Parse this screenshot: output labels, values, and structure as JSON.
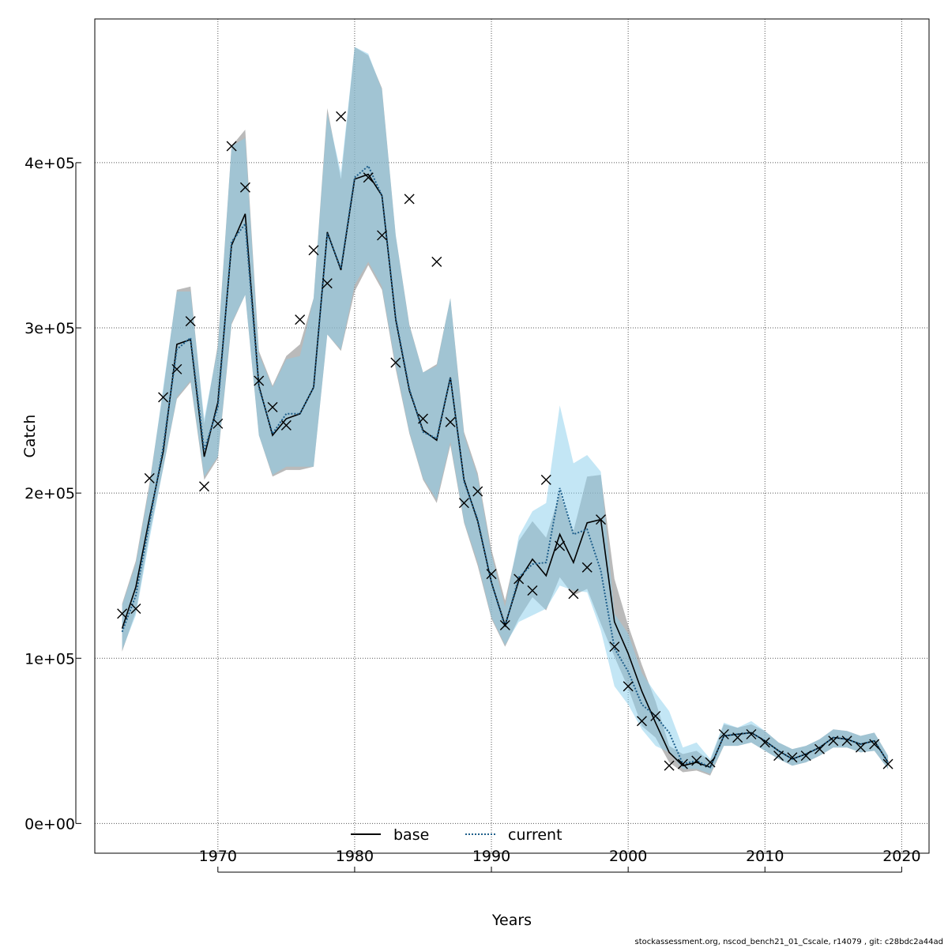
{
  "chart_data": {
    "type": "line",
    "xlabel": "Years",
    "ylabel": "Catch",
    "xlim": [
      1961,
      2022
    ],
    "ylim": [
      -18000,
      487000
    ],
    "x_ticks": [
      1970,
      1980,
      1990,
      2000,
      2010,
      2020
    ],
    "y_ticks": [
      0,
      100000,
      200000,
      300000,
      400000
    ],
    "y_tick_labels": [
      "0e+00",
      "1e+05",
      "2e+05",
      "3e+05",
      "4e+05"
    ],
    "grid": true,
    "legend_position": "bottom-center",
    "colors": {
      "base": "#000000",
      "current": "#1f5f8b",
      "base_band": "#8c8c8c",
      "current_band": "#87ceeb"
    },
    "x": [
      1963,
      1964,
      1965,
      1966,
      1967,
      1968,
      1969,
      1970,
      1971,
      1972,
      1973,
      1974,
      1975,
      1976,
      1977,
      1978,
      1979,
      1980,
      1981,
      1982,
      1983,
      1984,
      1985,
      1986,
      1987,
      1988,
      1989,
      1990,
      1991,
      1992,
      1993,
      1994,
      1995,
      1996,
      1997,
      1998,
      1999,
      2000,
      2001,
      2002,
      2003,
      2004,
      2005,
      2006,
      2007,
      2008,
      2009,
      2010,
      2011,
      2012,
      2013,
      2014,
      2015,
      2016,
      2017,
      2018,
      2019
    ],
    "observed": [
      127000,
      130000,
      209000,
      258000,
      275000,
      304000,
      204000,
      242000,
      410000,
      385000,
      268000,
      252000,
      241000,
      305000,
      347000,
      327000,
      428000,
      null,
      391000,
      356000,
      279000,
      378000,
      245000,
      340000,
      243000,
      194000,
      201000,
      151000,
      120000,
      148000,
      141000,
      208000,
      168000,
      139000,
      155000,
      184000,
      107000,
      83000,
      62000,
      65000,
      35000,
      36000,
      38000,
      37000,
      54000,
      52000,
      54000,
      49000,
      41000,
      40000,
      41000,
      45000,
      50000,
      50000,
      46000,
      48000,
      36000
    ],
    "series": [
      {
        "name": "base",
        "values": [
          118000,
          143000,
          185000,
          225000,
          290000,
          293000,
          222000,
          255000,
          350000,
          369000,
          265000,
          235000,
          245000,
          248000,
          264000,
          358000,
          335000,
          390000,
          393000,
          380000,
          305000,
          262000,
          238000,
          232000,
          270000,
          208000,
          183000,
          146000,
          120000,
          147000,
          160000,
          150000,
          175000,
          158000,
          182000,
          184000,
          122000,
          103000,
          80000,
          61000,
          43000,
          35000,
          37000,
          34000,
          53000,
          54000,
          55000,
          50000,
          44000,
          39000,
          42000,
          46000,
          52000,
          51000,
          48000,
          50000,
          37000
        ],
        "lower": [
          104000,
          128000,
          175000,
          215000,
          257000,
          267000,
          208000,
          221000,
          302000,
          320000,
          235000,
          210000,
          214000,
          214000,
          216000,
          296000,
          286000,
          322000,
          338000,
          323000,
          275000,
          236000,
          208000,
          194000,
          229000,
          182000,
          156000,
          124000,
          107000,
          124000,
          137000,
          129000,
          149000,
          138000,
          142000,
          121000,
          101000,
          82000,
          59000,
          52000,
          37000,
          31000,
          32000,
          29000,
          47000,
          47000,
          49000,
          44000,
          39000,
          35000,
          37000,
          41000,
          46000,
          46000,
          43000,
          44000,
          33000
        ],
        "upper": [
          133000,
          159000,
          206000,
          262000,
          323000,
          325000,
          242000,
          290000,
          410000,
          420000,
          286000,
          265000,
          283000,
          290000,
          318000,
          433000,
          390000,
          470000,
          465000,
          445000,
          356000,
          302000,
          273000,
          278000,
          318000,
          237000,
          212000,
          166000,
          135000,
          171000,
          183000,
          173000,
          200000,
          177000,
          210000,
          211000,
          148000,
          120000,
          96000,
          74000,
          47000,
          42000,
          44000,
          38000,
          60000,
          58000,
          60000,
          56000,
          49000,
          45000,
          47000,
          51000,
          57000,
          56000,
          53000,
          55000,
          41000
        ]
      },
      {
        "name": "current",
        "values": [
          116000,
          138000,
          182000,
          228000,
          287000,
          294000,
          226000,
          252000,
          352000,
          363000,
          264000,
          236000,
          248000,
          248000,
          264000,
          357000,
          336000,
          391000,
          398000,
          380000,
          306000,
          263000,
          237000,
          233000,
          270000,
          207000,
          184000,
          146000,
          119000,
          149000,
          157000,
          158000,
          203000,
          175000,
          178000,
          153000,
          106000,
          92000,
          72000,
          65000,
          55000,
          36000,
          38000,
          34000,
          53000,
          54000,
          55000,
          50000,
          44000,
          39000,
          42000,
          46000,
          52000,
          51000,
          48000,
          50000,
          37000
        ],
        "lower": [
          105000,
          126000,
          172000,
          215000,
          258000,
          268000,
          210000,
          222000,
          303000,
          320000,
          235000,
          211000,
          216000,
          216000,
          216000,
          296000,
          287000,
          326000,
          340000,
          325000,
          277000,
          237000,
          209000,
          196000,
          231000,
          183000,
          158000,
          125000,
          108000,
          122000,
          126000,
          130000,
          144000,
          141000,
          140000,
          117000,
          83000,
          72000,
          57000,
          47000,
          43000,
          33000,
          33000,
          30000,
          47000,
          47000,
          49000,
          44000,
          39000,
          35000,
          37000,
          41000,
          46000,
          46000,
          43000,
          44000,
          33000
        ],
        "upper": [
          132000,
          157000,
          204000,
          264000,
          322000,
          322000,
          245000,
          288000,
          410000,
          415000,
          284000,
          264000,
          281000,
          283000,
          318000,
          430000,
          394000,
          470000,
          466000,
          444000,
          356000,
          301000,
          273000,
          277000,
          318000,
          235000,
          210000,
          163000,
          131000,
          174000,
          189000,
          194000,
          253000,
          218000,
          223000,
          213000,
          127000,
          115000,
          91000,
          79000,
          68000,
          46000,
          49000,
          39000,
          61000,
          58000,
          62000,
          56000,
          49000,
          45000,
          47000,
          51000,
          57000,
          56000,
          53000,
          55000,
          41000
        ]
      }
    ],
    "footnote": "stockassessment.org, nscod_bench21_01_Cscale, r14079 , git: c28bdc2a44ad"
  }
}
